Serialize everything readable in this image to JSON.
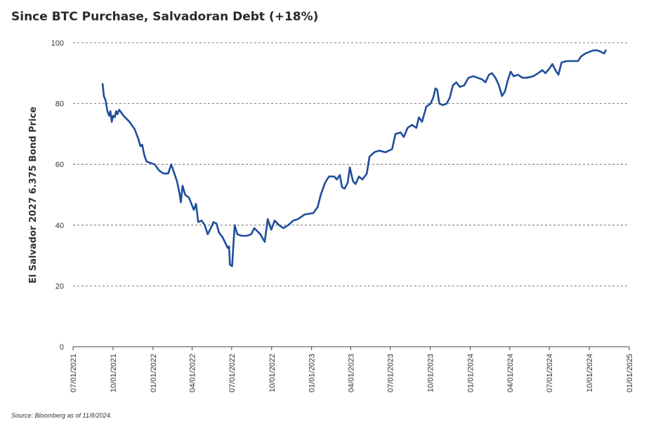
{
  "title": "Since BTC Purchase, Salvadoran Debt (+18%)",
  "source": "Source: Bloomberg as of 11/8/2024.",
  "colors": {
    "series": "#1f4e99",
    "grid": "#555555",
    "axis": "#444444"
  },
  "chart_data": {
    "type": "line",
    "ylabel": "El Salvador 2027 6.375 Bond Price",
    "ylim": [
      0,
      100
    ],
    "yticks": [
      0,
      20,
      40,
      60,
      80,
      100
    ],
    "xlim": [
      "07/01/2021",
      "01/01/2025"
    ],
    "xticks": [
      "07/01/2021",
      "10/01/2021",
      "01/01/2022",
      "04/01/2022",
      "07/01/2022",
      "10/01/2022",
      "01/01/2023",
      "04/01/2023",
      "07/01/2023",
      "10/01/2023",
      "01/01/2024",
      "04/01/2024",
      "07/01/2024",
      "10/01/2024",
      "01/01/2025"
    ],
    "grid": "horizontal dashed",
    "series": [
      {
        "points": [
          [
            "09/07/2021",
            86.5
          ],
          [
            "09/10/2021",
            82.5
          ],
          [
            "09/14/2021",
            81.0
          ],
          [
            "09/18/2021",
            77.5
          ],
          [
            "09/22/2021",
            76.0
          ],
          [
            "09/25/2021",
            77.5
          ],
          [
            "09/28/2021",
            74.0
          ],
          [
            "10/01/2021",
            76.0
          ],
          [
            "10/05/2021",
            75.5
          ],
          [
            "10/08/2021",
            77.5
          ],
          [
            "10/11/2021",
            76.5
          ],
          [
            "10/15/2021",
            78.0
          ],
          [
            "10/25/2021",
            76.0
          ],
          [
            "11/08/2021",
            74.0
          ],
          [
            "11/20/2021",
            71.5
          ],
          [
            "11/28/2021",
            68.5
          ],
          [
            "12/03/2021",
            66.0
          ],
          [
            "12/07/2021",
            66.5
          ],
          [
            "12/12/2021",
            63.0
          ],
          [
            "12/17/2021",
            61.0
          ],
          [
            "12/25/2021",
            60.5
          ],
          [
            "01/05/2022",
            60.0
          ],
          [
            "01/15/2022",
            58.0
          ],
          [
            "01/25/2022",
            57.0
          ],
          [
            "02/05/2022",
            57.0
          ],
          [
            "02/12/2022",
            60.0
          ],
          [
            "02/18/2022",
            57.5
          ],
          [
            "02/25/2022",
            54.5
          ],
          [
            "03/03/2022",
            50.5
          ],
          [
            "03/06/2022",
            47.5
          ],
          [
            "03/10/2022",
            53.0
          ],
          [
            "03/16/2022",
            50.0
          ],
          [
            "03/25/2022",
            49.0
          ],
          [
            "04/05/2022",
            45.0
          ],
          [
            "04/10/2022",
            47.0
          ],
          [
            "04/15/2022",
            41.0
          ],
          [
            "04/23/2022",
            41.5
          ],
          [
            "04/30/2022",
            40.0
          ],
          [
            "05/07/2022",
            37.0
          ],
          [
            "05/14/2022",
            39.0
          ],
          [
            "05/20/2022",
            41.0
          ],
          [
            "05/27/2022",
            40.5
          ],
          [
            "06/02/2022",
            37.5
          ],
          [
            "06/10/2022",
            36.0
          ],
          [
            "06/17/2022",
            34.0
          ],
          [
            "06/22/2022",
            32.5
          ],
          [
            "06/25/2022",
            33.0
          ],
          [
            "06/27/2022",
            27.0
          ],
          [
            "07/02/2022",
            26.5
          ],
          [
            "07/05/2022",
            33.5
          ],
          [
            "07/08/2022",
            40.0
          ],
          [
            "07/14/2022",
            37.0
          ],
          [
            "07/24/2022",
            36.5
          ],
          [
            "08/05/2022",
            36.5
          ],
          [
            "08/15/2022",
            37.0
          ],
          [
            "08/22/2022",
            39.0
          ],
          [
            "09/05/2022",
            37.0
          ],
          [
            "09/15/2022",
            34.5
          ],
          [
            "09/22/2022",
            42.0
          ],
          [
            "09/30/2022",
            38.5
          ],
          [
            "10/08/2022",
            41.5
          ],
          [
            "10/18/2022",
            40.0
          ],
          [
            "10/28/2022",
            39.0
          ],
          [
            "11/08/2022",
            40.0
          ],
          [
            "11/20/2022",
            41.5
          ],
          [
            "12/01/2022",
            42.0
          ],
          [
            "12/16/2022",
            43.5
          ],
          [
            "01/05/2023",
            44.0
          ],
          [
            "01/15/2023",
            46.0
          ],
          [
            "01/22/2023",
            50.0
          ],
          [
            "02/01/2023",
            54.0
          ],
          [
            "02/10/2023",
            56.0
          ],
          [
            "02/22/2023",
            56.0
          ],
          [
            "02/28/2023",
            55.0
          ],
          [
            "03/07/2023",
            56.5
          ],
          [
            "03/12/2023",
            52.5
          ],
          [
            "03/18/2023",
            52.0
          ],
          [
            "03/25/2023",
            54.0
          ],
          [
            "03/30/2023",
            59.0
          ],
          [
            "04/06/2023",
            54.5
          ],
          [
            "04/12/2023",
            53.5
          ],
          [
            "04/20/2023",
            56.0
          ],
          [
            "04/28/2023",
            55.0
          ],
          [
            "05/08/2023",
            57.0
          ],
          [
            "05/14/2023",
            62.5
          ],
          [
            "05/25/2023",
            64.0
          ],
          [
            "06/05/2023",
            64.5
          ],
          [
            "06/20/2023",
            64.0
          ],
          [
            "07/05/2023",
            65.0
          ],
          [
            "07/13/2023",
            70.0
          ],
          [
            "07/25/2023",
            70.5
          ],
          [
            "08/01/2023",
            69.0
          ],
          [
            "08/10/2023",
            72.0
          ],
          [
            "08/20/2023",
            73.0
          ],
          [
            "08/30/2023",
            72.0
          ],
          [
            "09/05/2023",
            75.5
          ],
          [
            "09/12/2023",
            74.0
          ],
          [
            "09/22/2023",
            79.0
          ],
          [
            "10/02/2023",
            80.0
          ],
          [
            "10/08/2023",
            82.0
          ],
          [
            "10/13/2023",
            85.0
          ],
          [
            "10/17/2023",
            84.5
          ],
          [
            "10/22/2023",
            80.0
          ],
          [
            "10/30/2023",
            79.5
          ],
          [
            "11/08/2023",
            80.0
          ],
          [
            "11/15/2023",
            82.0
          ],
          [
            "11/22/2023",
            86.0
          ],
          [
            "11/30/2023",
            87.0
          ],
          [
            "12/08/2023",
            85.5
          ],
          [
            "12/18/2023",
            86.0
          ],
          [
            "12/28/2023",
            88.5
          ],
          [
            "01/08/2024",
            89.0
          ],
          [
            "01/18/2024",
            88.5
          ],
          [
            "01/28/2024",
            88.0
          ],
          [
            "02/05/2024",
            87.0
          ],
          [
            "02/13/2024",
            89.5
          ],
          [
            "02/20/2024",
            90.0
          ],
          [
            "02/28/2024",
            88.5
          ],
          [
            "03/07/2024",
            86.0
          ],
          [
            "03/14/2024",
            82.5
          ],
          [
            "03/21/2024",
            84.0
          ],
          [
            "03/27/2024",
            87.5
          ],
          [
            "04/03/2024",
            90.5
          ],
          [
            "04/10/2024",
            89.0
          ],
          [
            "04/20/2024",
            89.5
          ],
          [
            "04/30/2024",
            88.5
          ],
          [
            "05/10/2024",
            88.5
          ],
          [
            "05/25/2024",
            89.0
          ],
          [
            "06/05/2024",
            90.0
          ],
          [
            "06/15/2024",
            91.0
          ],
          [
            "06/22/2024",
            90.0
          ],
          [
            "07/01/2024",
            91.5
          ],
          [
            "07/08/2024",
            93.0
          ],
          [
            "07/15/2024",
            91.0
          ],
          [
            "07/22/2024",
            89.5
          ],
          [
            "07/29/2024",
            93.5
          ],
          [
            "08/10/2024",
            94.0
          ],
          [
            "08/25/2024",
            94.0
          ],
          [
            "09/05/2024",
            94.0
          ],
          [
            "09/12/2024",
            95.5
          ],
          [
            "09/22/2024",
            96.5
          ],
          [
            "10/01/2024",
            97.0
          ],
          [
            "10/10/2024",
            97.5
          ],
          [
            "10/20/2024",
            97.5
          ],
          [
            "10/28/2024",
            97.0
          ],
          [
            "11/04/2024",
            96.5
          ],
          [
            "11/08/2024",
            97.5
          ]
        ]
      }
    ]
  }
}
